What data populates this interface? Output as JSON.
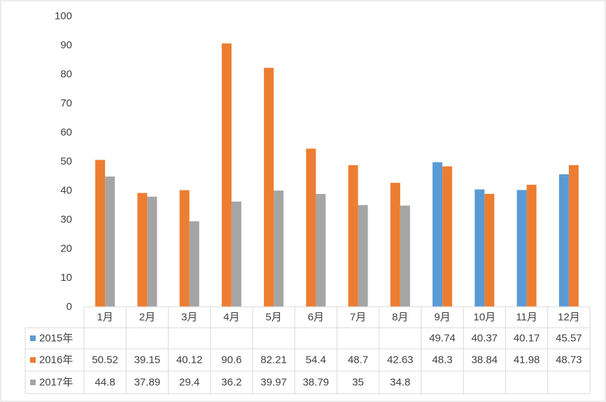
{
  "chart_data": {
    "type": "bar",
    "categories": [
      "1月",
      "2月",
      "3月",
      "4月",
      "5月",
      "6月",
      "7月",
      "8月",
      "9月",
      "10月",
      "11月",
      "12月"
    ],
    "series": [
      {
        "name": "2015年",
        "color": "#5b9bd5",
        "values": [
          null,
          null,
          null,
          null,
          null,
          null,
          null,
          null,
          49.74,
          40.37,
          40.17,
          45.57
        ]
      },
      {
        "name": "2016年",
        "color": "#ed7d31",
        "values": [
          50.52,
          39.15,
          40.12,
          90.6,
          82.21,
          54.4,
          48.7,
          42.63,
          48.3,
          38.84,
          41.98,
          48.73
        ]
      },
      {
        "name": "2017年",
        "color": "#a5a5a5",
        "values": [
          44.8,
          37.89,
          29.4,
          36.2,
          39.97,
          38.79,
          35,
          34.8,
          null,
          null,
          null,
          null
        ]
      }
    ],
    "y_ticks": [
      "0",
      "10",
      "20",
      "30",
      "40",
      "50",
      "60",
      "70",
      "80",
      "90",
      "100"
    ],
    "ylim": [
      0,
      100
    ],
    "grid": false,
    "legend": "data-table-below",
    "data_table": {
      "rows": [
        {
          "series": "2015年",
          "cells": [
            "",
            "",
            "",
            "",
            "",
            "",
            "",
            "",
            "49.74",
            "40.37",
            "40.17",
            "45.57"
          ]
        },
        {
          "series": "2016年",
          "cells": [
            "50.52",
            "39.15",
            "40.12",
            "90.6",
            "82.21",
            "54.4",
            "48.7",
            "42.63",
            "48.3",
            "38.84",
            "41.98",
            "48.73"
          ]
        },
        {
          "series": "2017年",
          "cells": [
            "44.8",
            "37.89",
            "29.4",
            "36.2",
            "39.97",
            "38.79",
            "35",
            "34.8",
            "",
            "",
            "",
            ""
          ]
        }
      ]
    }
  }
}
